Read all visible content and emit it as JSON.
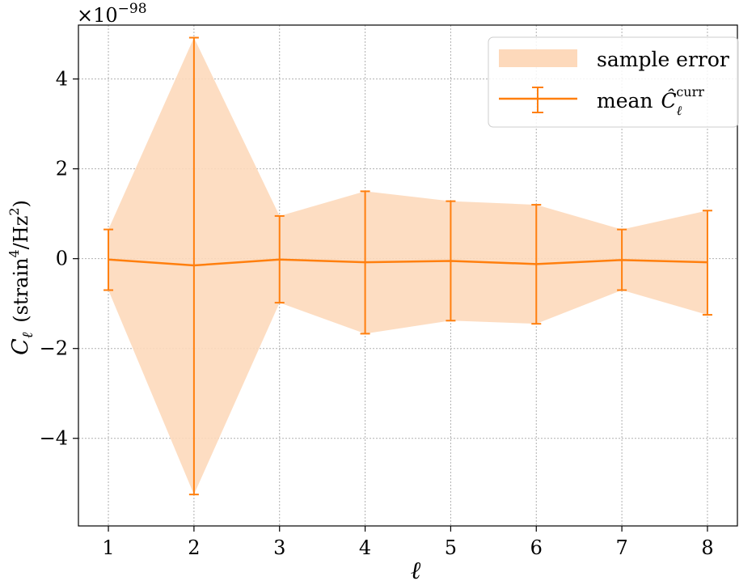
{
  "chart_data": {
    "type": "line",
    "x": [
      1,
      2,
      3,
      4,
      5,
      6,
      7,
      8
    ],
    "xlim": [
      0.65,
      8.35
    ],
    "ylim": [
      -5.95,
      5.2
    ],
    "xticks": [
      1,
      2,
      3,
      4,
      5,
      6,
      7,
      8
    ],
    "yticks": [
      -4,
      -2,
      0,
      2,
      4
    ],
    "ytick_labels": [
      "−4",
      "−2",
      "0",
      "2",
      "4"
    ],
    "y_offset_label": {
      "base": "×10",
      "exponent": "−98"
    },
    "xlabel": "ℓ",
    "ylabel": {
      "symbol": "C",
      "subscript": "ℓ",
      "units_pre": "(strain",
      "units_exp1": "4",
      "units_mid": "/Hz",
      "units_exp2": "2",
      "units_post": ")"
    },
    "grid": true,
    "legend_position": "top-right",
    "series": [
      {
        "name": "mean",
        "name_symbol": "Ĉ",
        "name_subscript": "ℓ",
        "name_superscript": "curr",
        "kind": "line-errorbar",
        "color": "#ff7f0e",
        "y": [
          -0.02,
          -0.15,
          -0.02,
          -0.08,
          -0.05,
          -0.12,
          -0.03,
          -0.08
        ],
        "yerr_low": [
          -0.7,
          -5.25,
          -0.98,
          -1.67,
          -1.38,
          -1.45,
          -0.7,
          -1.25
        ],
        "yerr_high": [
          0.65,
          4.92,
          0.95,
          1.5,
          1.28,
          1.2,
          0.65,
          1.07
        ]
      },
      {
        "name": "sample error",
        "kind": "band",
        "color": "#fdd9bb",
        "low": [
          -0.7,
          -5.25,
          -0.98,
          -1.67,
          -1.38,
          -1.45,
          -0.7,
          -1.25
        ],
        "high": [
          0.65,
          4.92,
          0.95,
          1.5,
          1.28,
          1.2,
          0.65,
          1.07
        ]
      }
    ]
  }
}
